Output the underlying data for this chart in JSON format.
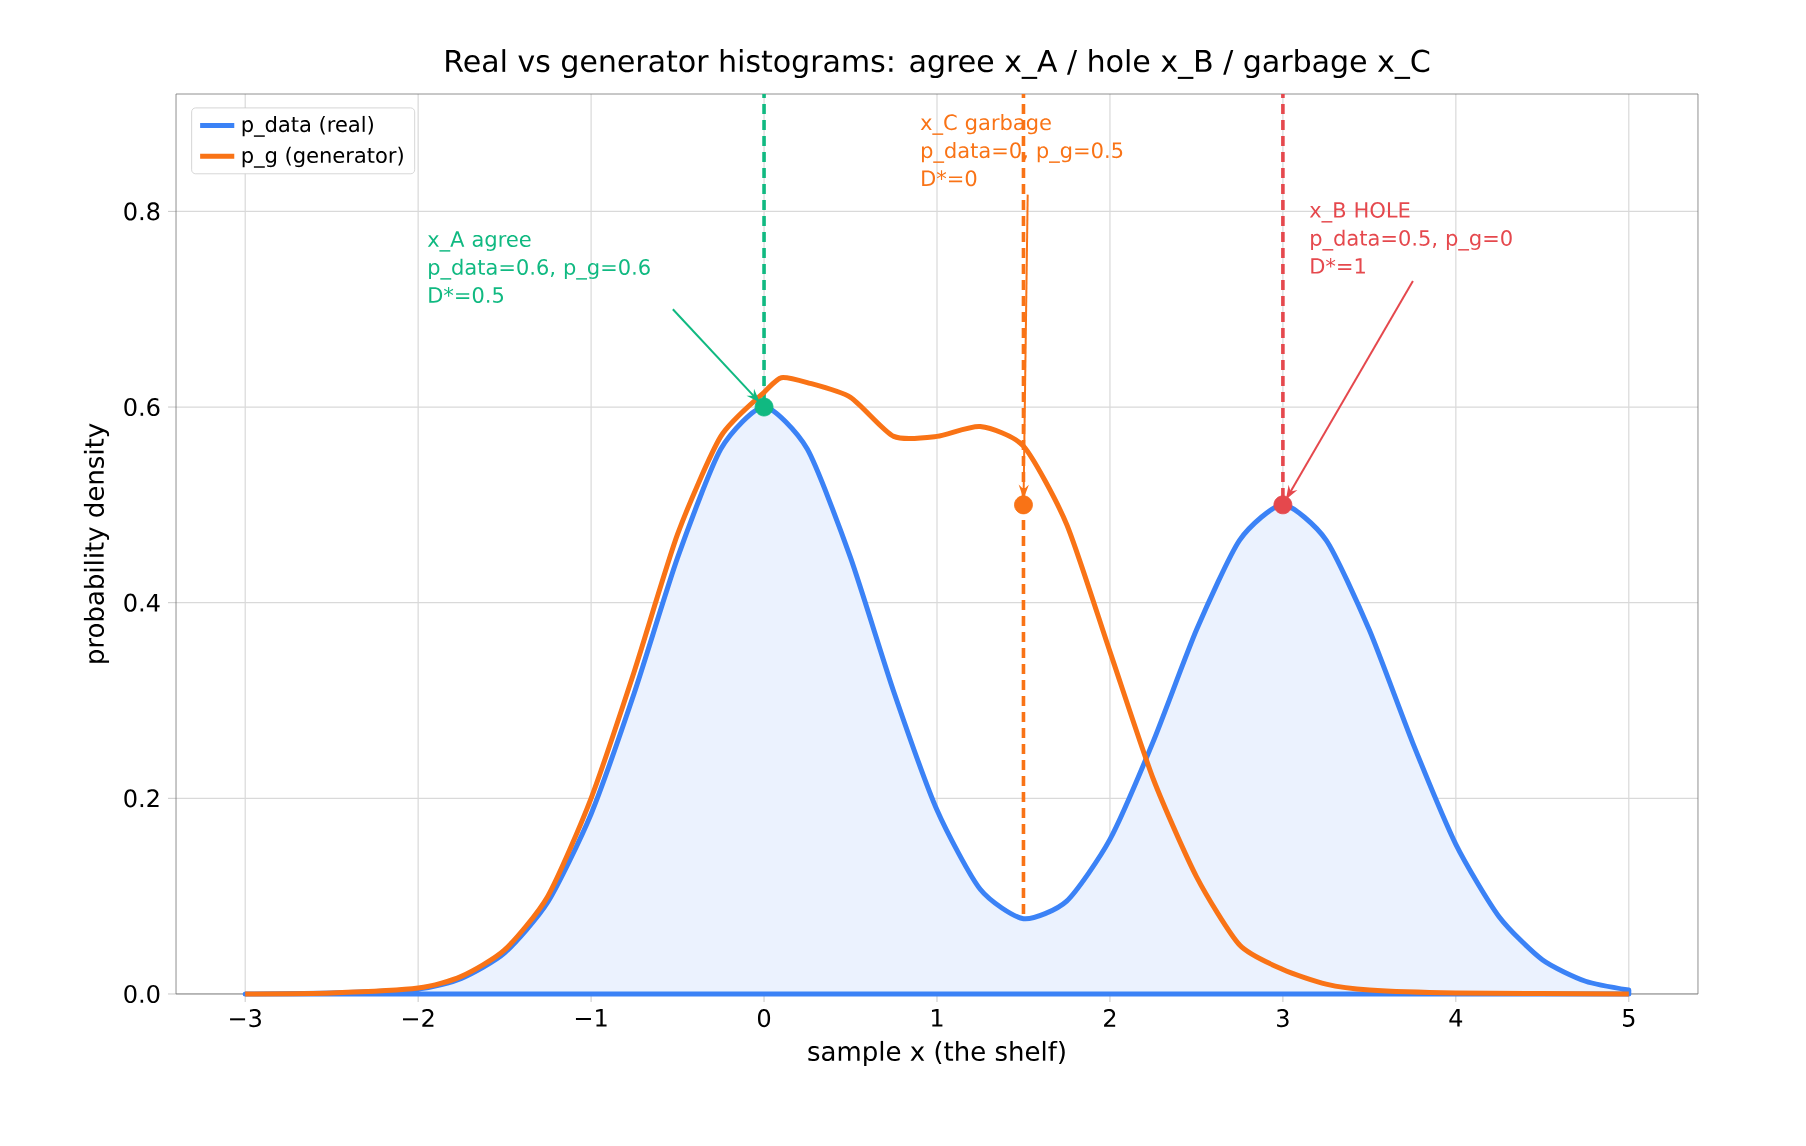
{
  "chart_data": {
    "type": "line",
    "title": "Real vs generator histograms: agree x_A / hole x_B / garbage x_C",
    "xlabel": "sample x (the shelf)",
    "ylabel": "probability density",
    "series": [
      {
        "name": "p_data (real)",
        "type": "area",
        "color": "#3b82f6",
        "x": [
          -3,
          -2.5,
          -2,
          -1.75,
          -1.5,
          -1.25,
          -1,
          -0.75,
          -0.5,
          -0.25,
          0,
          0.25,
          0.5,
          0.75,
          1,
          1.25,
          1.5,
          1.75,
          2,
          2.25,
          2.5,
          2.75,
          3,
          3.25,
          3.5,
          3.75,
          4,
          4.25,
          4.5,
          4.75,
          5
        ],
        "values": [
          0,
          0.001,
          0.005,
          0.016,
          0.042,
          0.094,
          0.184,
          0.308,
          0.446,
          0.557,
          0.6,
          0.557,
          0.446,
          0.309,
          0.188,
          0.107,
          0.077,
          0.095,
          0.158,
          0.258,
          0.372,
          0.464,
          0.5,
          0.464,
          0.372,
          0.257,
          0.153,
          0.079,
          0.035,
          0.013,
          0.004
        ]
      },
      {
        "name": "p_g (generator)",
        "color": "#f97316",
        "x": [
          -3,
          -2.5,
          -2,
          -1.75,
          -1.5,
          -1.25,
          -1,
          -0.75,
          -0.5,
          -0.25,
          0,
          0.1,
          0.25,
          0.5,
          0.75,
          1,
          1.25,
          1.5,
          1.75,
          2,
          2.25,
          2.5,
          2.75,
          3,
          3.25,
          3.5,
          4,
          5
        ],
        "values": [
          0,
          0.001,
          0.006,
          0.018,
          0.045,
          0.1,
          0.2,
          0.33,
          0.47,
          0.57,
          0.615,
          0.63,
          0.625,
          0.61,
          0.57,
          0.57,
          0.58,
          0.56,
          0.48,
          0.35,
          0.22,
          0.12,
          0.05,
          0.025,
          0.01,
          0.004,
          0.001,
          0
        ]
      },
      {
        "type": "scatter",
        "marker": "circle",
        "x": [
          0,
          1.5,
          3
        ],
        "values": [
          0.6,
          0.5,
          0.5
        ],
        "colors": [
          "#10b981",
          "#f97316",
          "#e5484d"
        ]
      }
    ],
    "ref_lines": [
      {
        "axis": "x",
        "value": 0,
        "color": "#10b981",
        "line_style": "dashed"
      },
      {
        "axis": "x",
        "value": 1.5,
        "color": "#f97316",
        "line_style": "dashed"
      },
      {
        "axis": "x",
        "value": 3,
        "color": "#e5484d",
        "line_style": "dashed"
      }
    ],
    "annotations": [
      {
        "text": "x_A agree\np_data=0.6, p_g=0.6\nD*=0.5",
        "x": 0,
        "y": 0.6
      },
      {
        "text": "x_C garbage\np_data=0, p_g=0.5\nD*=0",
        "x": 1.5,
        "y": 0.5
      },
      {
        "text": "x_B HOLE\np_data=0.5, p_g=0\nD*=1",
        "x": 3,
        "y": 0.5
      }
    ],
    "xlim": [
      -3.4,
      5.4
    ],
    "ylim": [
      0,
      0.92
    ],
    "xticks": [
      {
        "value": -3,
        "label": "−3"
      },
      {
        "value": -2,
        "label": "−2"
      },
      {
        "value": -1,
        "label": "−1"
      },
      0,
      1,
      2,
      3,
      4,
      5
    ],
    "yticks": [
      {
        "value": 0,
        "label": "0.0"
      },
      {
        "value": 0.2,
        "label": "0.2"
      },
      {
        "value": 0.4,
        "label": "0.4"
      },
      {
        "value": 0.6,
        "label": "0.6"
      },
      {
        "value": 0.8,
        "label": "0.8"
      }
    ],
    "grid": true,
    "legend": "top left",
    "line_style": "solid"
  }
}
